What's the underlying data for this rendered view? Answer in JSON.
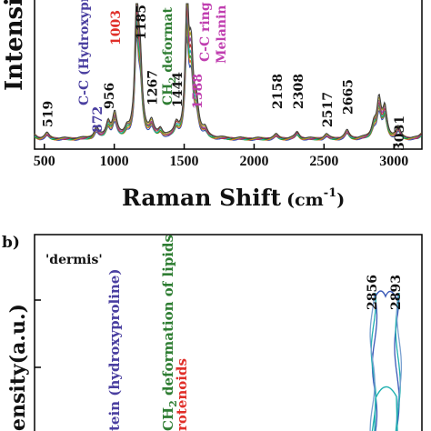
{
  "chart_data": [
    {
      "type": "line",
      "panel_label": "",
      "xlabel": "Raman Shift",
      "xlabel_unit": "(cm",
      "xlabel_sup": "-1",
      "xlabel_close": ")",
      "ylabel": "Intensit",
      "xlim": [
        430,
        3200
      ],
      "ylim": [
        0,
        100
      ],
      "grid": false,
      "x_ticks": [
        500,
        1000,
        1500,
        2000,
        2500,
        3000
      ],
      "peaks": [
        {
          "text": "519",
          "x": 519,
          "color": "#111111"
        },
        {
          "text": "872",
          "x": 872,
          "color": "#4a3fa0"
        },
        {
          "text": "956",
          "x": 956,
          "color": "#111111"
        },
        {
          "text": "1003",
          "x": 1003,
          "color": "#e0302a"
        },
        {
          "text": "1185",
          "x": 1185,
          "color": "#111111"
        },
        {
          "text": "1267",
          "x": 1267,
          "color": "#111111"
        },
        {
          "text": "1444",
          "x": 1444,
          "color": "#111111"
        },
        {
          "text": "1588",
          "x": 1588,
          "color": "#c03fb0"
        },
        {
          "text": "2158",
          "x": 2158,
          "color": "#111111"
        },
        {
          "text": "2308",
          "x": 2308,
          "color": "#111111"
        },
        {
          "text": "2517",
          "x": 2517,
          "color": "#111111"
        },
        {
          "text": "2665",
          "x": 2665,
          "color": "#111111"
        },
        {
          "text": "3031",
          "x": 3031,
          "color": "#111111"
        }
      ],
      "annotations": [
        {
          "text": "C-C (Hydroxyproline",
          "color": "#4a3fa0"
        },
        {
          "text": "CH",
          "sub": "2",
          "rest": " deformat",
          "color": "#2e7d32"
        },
        {
          "text": "C-C ring",
          "color": "#c03fb0"
        },
        {
          "text": "Melanin",
          "color": "#c03fb0"
        }
      ],
      "series": [
        {
          "color": "#2f4fb0"
        },
        {
          "color": "#e07020"
        },
        {
          "color": "#2aa02a"
        },
        {
          "color": "#20b0b0"
        },
        {
          "color": "#c03030"
        },
        {
          "color": "#9040b0"
        },
        {
          "color": "#b0a020"
        },
        {
          "color": "#404040"
        }
      ],
      "peak_profile": {
        "x": [
          430,
          519,
          872,
          956,
          1003,
          1090,
          1160,
          1185,
          1267,
          1330,
          1444,
          1520,
          1550,
          1588,
          1650,
          2158,
          2308,
          2517,
          2665,
          2856,
          2893,
          2935,
          3031,
          3200
        ],
        "y": [
          3,
          4,
          8,
          12,
          18,
          6,
          100,
          55,
          10,
          6,
          9,
          100,
          60,
          22,
          5,
          3,
          5,
          3,
          6,
          10,
          28,
          22,
          8,
          4
        ]
      }
    },
    {
      "type": "line",
      "panel_label": "b)",
      "region": "'dermis'",
      "ylabel": "ensity(a.u.)",
      "annotations": [
        {
          "text": "tein (hydroxyproline)",
          "color": "#4a3fa0"
        },
        {
          "text": "CH",
          "sub": "2",
          "rest": " deformation of lipids",
          "color": "#2e7d32"
        },
        {
          "text": "rotenoids",
          "color": "#e0302a"
        }
      ],
      "peaks": [
        {
          "text": "2856",
          "x": 2856
        },
        {
          "text": "2893",
          "x": 2893
        }
      ],
      "series": [
        {
          "color": "#3a5ab8"
        },
        {
          "color": "#20b0b0"
        },
        {
          "color": "#7aa0d0"
        }
      ]
    }
  ]
}
